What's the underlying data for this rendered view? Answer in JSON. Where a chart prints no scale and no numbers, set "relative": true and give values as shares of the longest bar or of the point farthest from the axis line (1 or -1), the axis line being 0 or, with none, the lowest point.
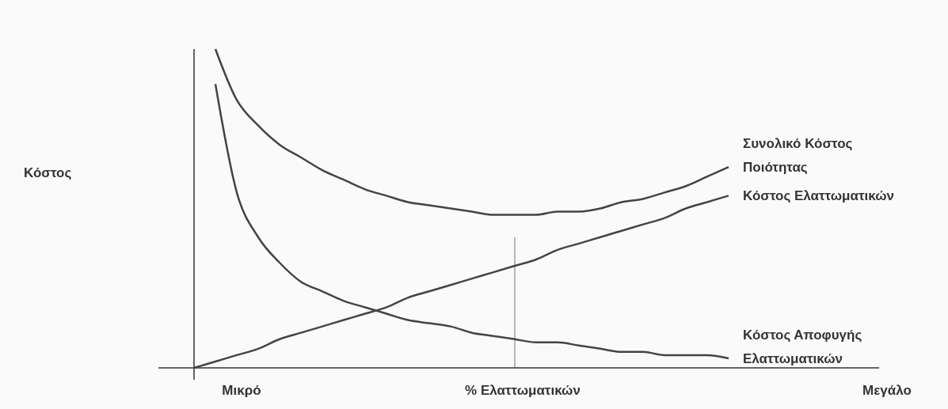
{
  "chart_data": {
    "type": "line",
    "relative": true,
    "xlabel": "% Ελαττωματικών",
    "annotations": [
      "Μικρό",
      "Μεγάλο",
      "Κόστος"
    ],
    "categories": [
      null,
      null,
      null,
      null,
      null,
      null,
      null,
      null,
      null,
      null,
      null,
      null,
      null,
      null,
      null,
      null,
      null,
      null,
      null,
      null,
      null,
      null,
      null,
      null,
      null,
      null
    ],
    "series": [
      {
        "name": "Συνολικό Κόστος Ποιότητας",
        "color": "#444444",
        "values": [
          null,
          1,
          0.84,
          0.76,
          0.7,
          0.66,
          0.62,
          0.59,
          0.56,
          0.54,
          0.52,
          0.51,
          0.5,
          0.49,
          0.48,
          0.48,
          0.48,
          0.49,
          0.49,
          0.5,
          0.52,
          0.53,
          0.55,
          0.57,
          0.6,
          0.63
        ]
      },
      {
        "name": "Κόστος Ελαττωματικών",
        "color": "#444444",
        "values": [
          0,
          0.02,
          0.04,
          0.06,
          0.09,
          0.11,
          0.13,
          0.15,
          0.17,
          0.19,
          0.22,
          0.24,
          0.26,
          0.28,
          0.3,
          0.32,
          0.34,
          0.37,
          0.39,
          0.41,
          0.43,
          0.45,
          0.47,
          0.5,
          0.52,
          0.54
        ]
      },
      {
        "name": "Κόστος Αποφυγής Ελαττωματικών",
        "color": "#444444",
        "values": [
          null,
          0.89,
          0.55,
          0.41,
          0.33,
          0.27,
          0.24,
          0.21,
          0.19,
          0.17,
          0.15,
          0.14,
          0.13,
          0.11,
          0.1,
          0.09,
          0.08,
          0.08,
          0.07,
          0.06,
          0.05,
          0.05,
          0.04,
          0.04,
          0.04,
          0.03
        ]
      }
    ],
    "marker": "none",
    "line_style": "solid"
  }
}
